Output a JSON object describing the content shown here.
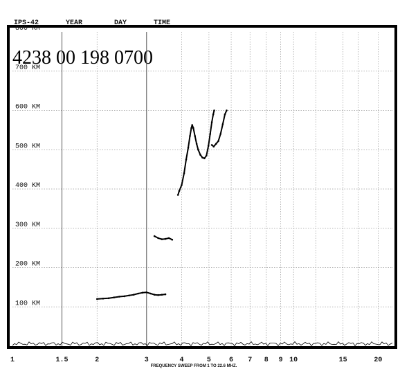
{
  "header": {
    "station": "IPS-42",
    "year_label": "YEAR",
    "day_label": "DAY",
    "time_label": "TIME",
    "record_id": "4238 00 198 0700"
  },
  "chart_data": {
    "type": "scatter",
    "xlabel": "FREQUENCY SWEEP FROM 1 TO 22.6 MHZ.",
    "ylabel": "",
    "x_scale": "log",
    "xlim": [
      1,
      22.6
    ],
    "ylim": [
      0,
      800
    ],
    "x_ticks": [
      {
        "value": 1,
        "label": "1"
      },
      {
        "value": 1.5,
        "label": "1.5"
      },
      {
        "value": 2,
        "label": "2"
      },
      {
        "value": 3,
        "label": "3"
      },
      {
        "value": 4,
        "label": "4"
      },
      {
        "value": 5,
        "label": "5"
      },
      {
        "value": 6,
        "label": "6"
      },
      {
        "value": 7,
        "label": "7"
      },
      {
        "value": 8,
        "label": "8"
      },
      {
        "value": 9,
        "label": "9"
      },
      {
        "value": 10,
        "label": "10"
      },
      {
        "value": 15,
        "label": "15"
      },
      {
        "value": 20,
        "label": "20"
      }
    ],
    "y_ticks": [
      {
        "value": 100,
        "label": "100 KM"
      },
      {
        "value": 200,
        "label": "200 KM"
      },
      {
        "value": 300,
        "label": "300 KM"
      },
      {
        "value": 400,
        "label": "400 KM"
      },
      {
        "value": 500,
        "label": "500 KM"
      },
      {
        "value": 600,
        "label": "600 KM"
      },
      {
        "value": 700,
        "label": "700 KM"
      },
      {
        "value": 800,
        "label": "800 KM"
      }
    ],
    "grid": true,
    "series": [
      {
        "points": [
          [
            3.88,
            385
          ],
          [
            3.92,
            395
          ],
          [
            4.0,
            410
          ],
          [
            4.08,
            440
          ],
          [
            4.15,
            475
          ],
          [
            4.22,
            505
          ],
          [
            4.28,
            535
          ],
          [
            4.33,
            555
          ],
          [
            4.36,
            563
          ],
          [
            4.4,
            555
          ],
          [
            4.46,
            535
          ],
          [
            4.52,
            515
          ],
          [
            4.58,
            500
          ],
          [
            4.66,
            487
          ],
          [
            4.74,
            480
          ],
          [
            4.82,
            478
          ],
          [
            4.9,
            485
          ],
          [
            4.98,
            510
          ],
          [
            5.05,
            540
          ],
          [
            5.12,
            570
          ],
          [
            5.18,
            590
          ],
          [
            5.22,
            600
          ]
        ]
      },
      {
        "points": [
          [
            5.12,
            512
          ],
          [
            5.2,
            508
          ],
          [
            5.3,
            515
          ],
          [
            5.4,
            522
          ],
          [
            5.5,
            540
          ],
          [
            5.6,
            565
          ],
          [
            5.7,
            590
          ],
          [
            5.78,
            600
          ]
        ]
      },
      {
        "points": [
          [
            2.0,
            120
          ],
          [
            2.1,
            121
          ],
          [
            2.2,
            122
          ],
          [
            2.3,
            124
          ],
          [
            2.4,
            126
          ],
          [
            2.5,
            127
          ],
          [
            2.6,
            129
          ],
          [
            2.7,
            131
          ],
          [
            2.8,
            134
          ],
          [
            2.9,
            136
          ],
          [
            3.0,
            137
          ],
          [
            3.1,
            134
          ],
          [
            3.2,
            131
          ],
          [
            3.3,
            130
          ],
          [
            3.4,
            131
          ],
          [
            3.5,
            132
          ]
        ]
      },
      {
        "points": [
          [
            3.2,
            280
          ],
          [
            3.3,
            275
          ],
          [
            3.4,
            272
          ],
          [
            3.5,
            273
          ],
          [
            3.6,
            275
          ],
          [
            3.7,
            271
          ]
        ]
      }
    ]
  }
}
